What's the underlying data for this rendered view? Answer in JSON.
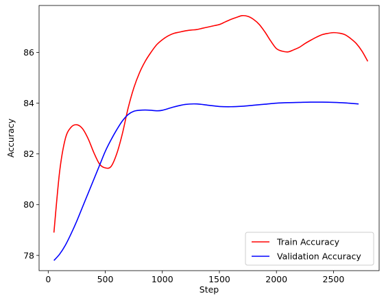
{
  "chart_data": {
    "type": "line",
    "xlabel": "Step",
    "ylabel": "Accuracy",
    "xlim": [
      -80,
      2900
    ],
    "ylim": [
      77.4,
      87.85
    ],
    "xticks": [
      0,
      500,
      1000,
      1500,
      2000,
      2500
    ],
    "yticks": [
      78,
      80,
      82,
      84,
      86
    ],
    "grid": false,
    "legend_position": "lower right",
    "series": [
      {
        "name": "Train Accuracy",
        "color": "#ff0000",
        "x": [
          50,
          100,
          150,
          200,
          250,
          300,
          350,
          400,
          450,
          500,
          550,
          600,
          650,
          700,
          750,
          800,
          850,
          900,
          950,
          1000,
          1050,
          1100,
          1150,
          1200,
          1250,
          1300,
          1350,
          1400,
          1450,
          1500,
          1550,
          1600,
          1650,
          1700,
          1750,
          1800,
          1850,
          1900,
          1950,
          2000,
          2050,
          2100,
          2150,
          2200,
          2250,
          2300,
          2350,
          2400,
          2450,
          2500,
          2550,
          2600,
          2650,
          2700,
          2750,
          2800
        ],
        "y": [
          78.9,
          81.3,
          82.6,
          83.05,
          83.15,
          83.0,
          82.6,
          82.05,
          81.6,
          81.45,
          81.5,
          82.0,
          82.8,
          83.8,
          84.6,
          85.2,
          85.65,
          86.0,
          86.3,
          86.5,
          86.65,
          86.75,
          86.8,
          86.85,
          86.88,
          86.9,
          86.95,
          87.0,
          87.05,
          87.1,
          87.2,
          87.3,
          87.38,
          87.45,
          87.42,
          87.3,
          87.1,
          86.8,
          86.45,
          86.15,
          86.05,
          86.02,
          86.1,
          86.2,
          86.35,
          86.48,
          86.6,
          86.7,
          86.75,
          86.78,
          86.76,
          86.7,
          86.55,
          86.35,
          86.05,
          85.65
        ]
      },
      {
        "name": "Validation Accuracy",
        "color": "#0000ff",
        "x": [
          50,
          100,
          150,
          200,
          250,
          300,
          350,
          400,
          450,
          500,
          550,
          600,
          650,
          700,
          750,
          800,
          850,
          900,
          950,
          1000,
          1100,
          1200,
          1300,
          1400,
          1500,
          1600,
          1700,
          1800,
          1900,
          2000,
          2100,
          2200,
          2300,
          2400,
          2500,
          2600,
          2720
        ],
        "y": [
          77.8,
          78.05,
          78.4,
          78.85,
          79.35,
          79.9,
          80.45,
          81.0,
          81.55,
          82.1,
          82.55,
          82.95,
          83.3,
          83.55,
          83.68,
          83.72,
          83.73,
          83.72,
          83.7,
          83.72,
          83.85,
          83.95,
          83.97,
          83.92,
          83.87,
          83.86,
          83.88,
          83.92,
          83.96,
          84.0,
          84.02,
          84.03,
          84.04,
          84.04,
          84.03,
          84.01,
          83.97
        ]
      }
    ]
  }
}
